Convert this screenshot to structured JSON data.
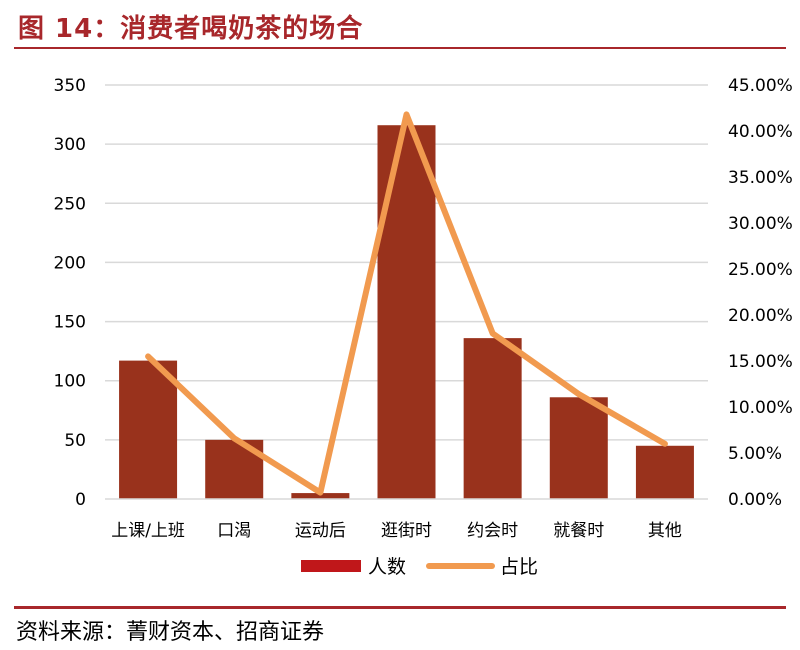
{
  "figure": {
    "title": "图 14：消费者喝奶茶的场合",
    "source": "资料来源：菁财资本、招商证券"
  },
  "chart_data": {
    "type": "bar",
    "categories": [
      "上课/上班",
      "口渴",
      "运动后",
      "逛街时",
      "约会时",
      "就餐时",
      "其他"
    ],
    "series": [
      {
        "name": "人数",
        "type": "bar",
        "axis": "left",
        "color": "#99321c",
        "values": [
          117,
          50,
          5,
          316,
          136,
          86,
          45
        ]
      },
      {
        "name": "占比",
        "type": "line",
        "axis": "right",
        "color": "#f19a4f",
        "values": [
          15.5,
          6.6,
          0.7,
          41.8,
          18.0,
          11.4,
          6.0
        ]
      }
    ],
    "y_left": {
      "min": 0,
      "max": 350,
      "step": 50,
      "ticks": [
        "0",
        "50",
        "100",
        "150",
        "200",
        "250",
        "300",
        "350"
      ]
    },
    "y_right": {
      "min": 0,
      "max": 45,
      "step": 5,
      "unit": "%",
      "ticks": [
        "0.00%",
        "5.00%",
        "10.00%",
        "15.00%",
        "20.00%",
        "25.00%",
        "30.00%",
        "35.00%",
        "40.00%",
        "45.00%"
      ]
    },
    "grid": true,
    "legend": "bottom-center",
    "xlabel": "",
    "ylabel": ""
  }
}
